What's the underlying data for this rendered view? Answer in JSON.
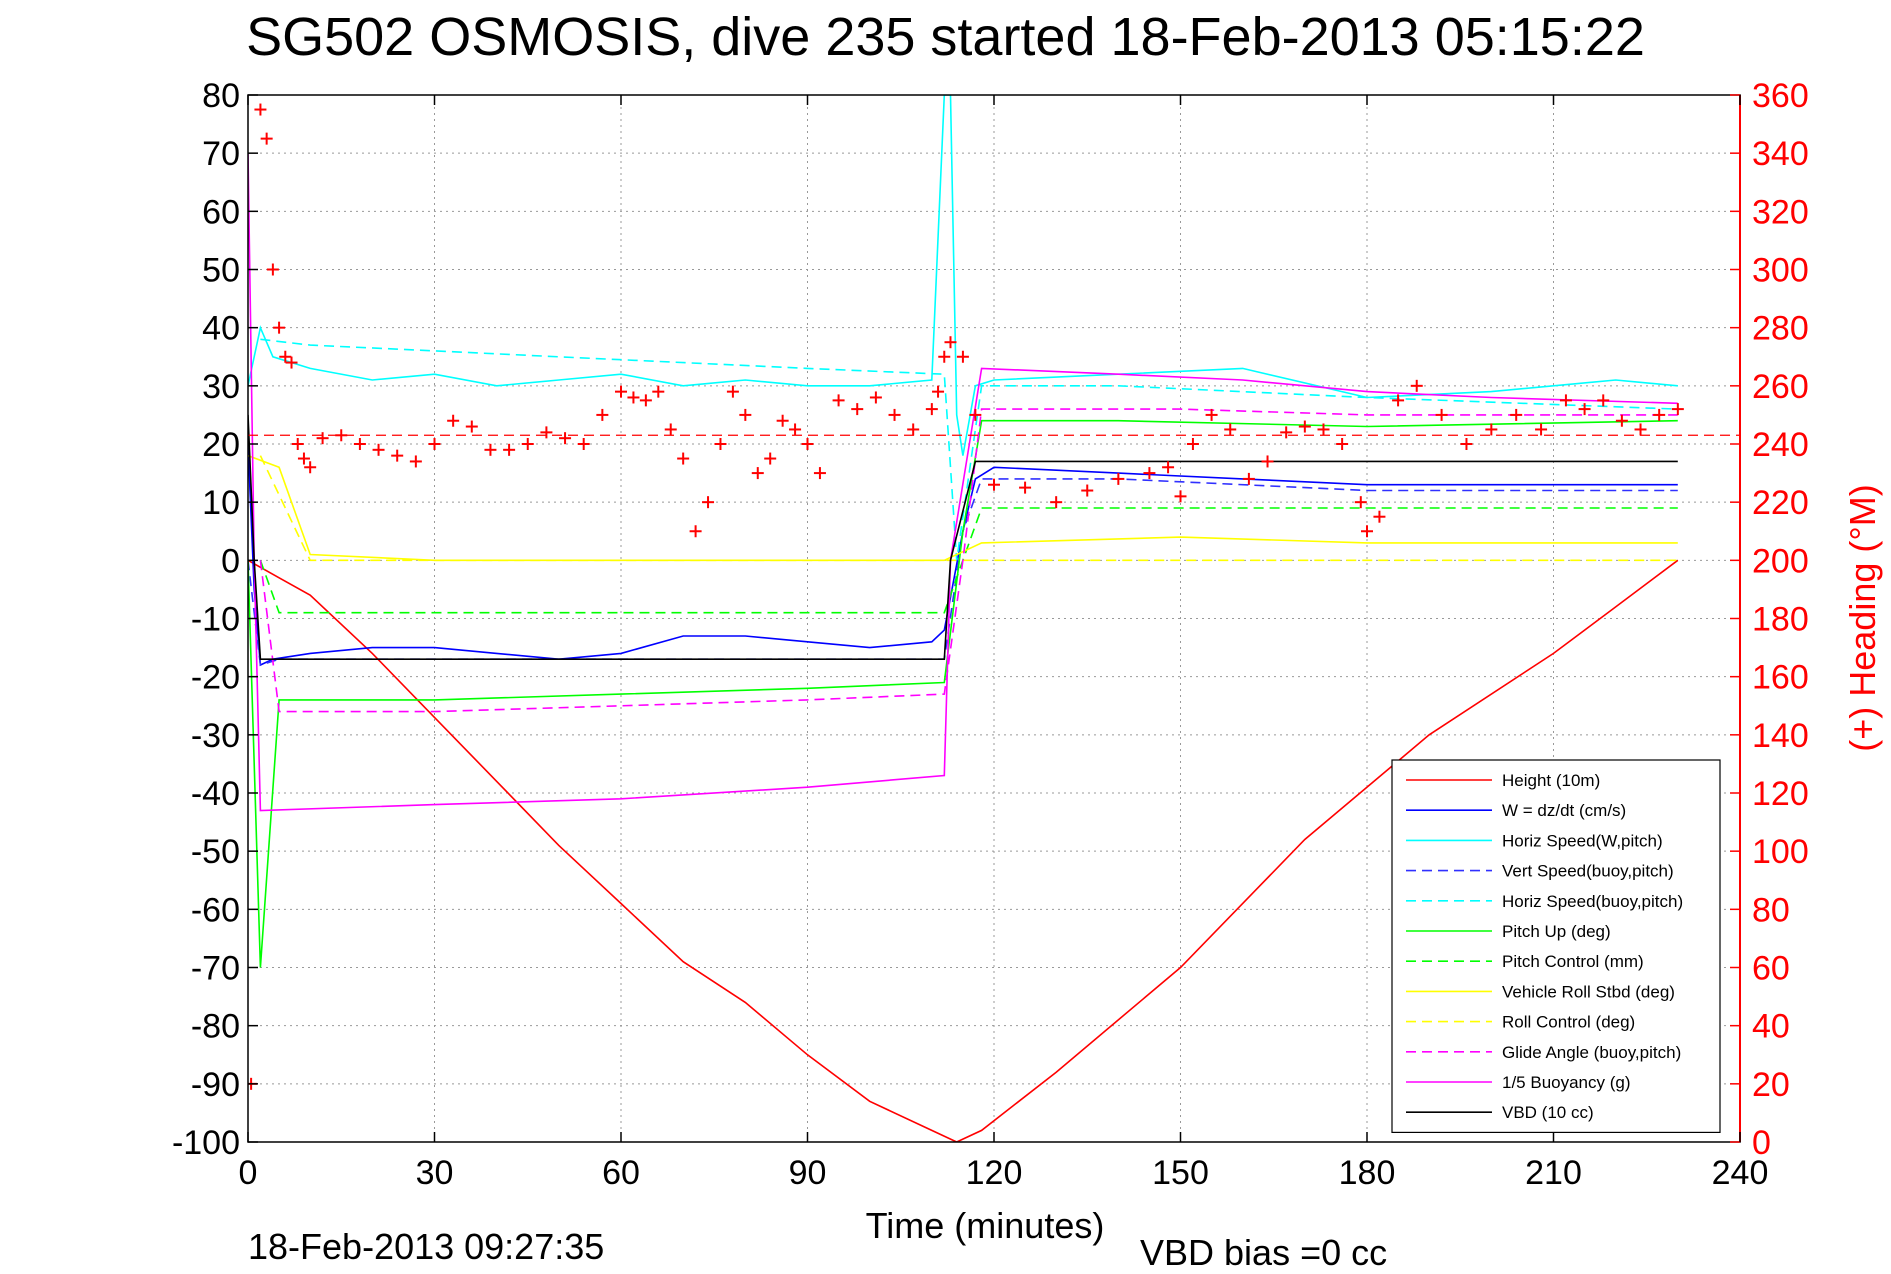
{
  "chart_data": {
    "type": "line",
    "title": "SG502 OSMOSIS, dive 235 started 18-Feb-2013 05:15:22",
    "xlabel": "Time (minutes)",
    "ylabel_right": "(+) Heading (°M)",
    "xlim": [
      0,
      240
    ],
    "ylim_left": [
      -100,
      80
    ],
    "ylim_right": [
      0,
      360
    ],
    "x_ticks": [
      "0",
      "30",
      "60",
      "90",
      "120",
      "150",
      "180",
      "210",
      "240"
    ],
    "y_ticks_left": [
      "80",
      "70",
      "60",
      "50",
      "40",
      "30",
      "20",
      "10",
      "0",
      "-10",
      "-20",
      "-30",
      "-40",
      "-50",
      "-60",
      "-70",
      "-80",
      "-90",
      "-100"
    ],
    "y_ticks_right": [
      "360",
      "340",
      "320",
      "300",
      "280",
      "260",
      "240",
      "220",
      "200",
      "180",
      "160",
      "140",
      "120",
      "100",
      "80",
      "60",
      "40",
      "20",
      "0"
    ],
    "grid": true,
    "legend_position": "lower-right",
    "footer_left": "18-Feb-2013 09:27:35",
    "footer_right": "VBD bias =0 cc",
    "series": [
      {
        "name": "Height (10m)",
        "color": "#ff0000",
        "style": "solid",
        "x": [
          0,
          5,
          10,
          20,
          30,
          40,
          50,
          60,
          70,
          80,
          90,
          100,
          110,
          114,
          118,
          130,
          150,
          170,
          190,
          210,
          220,
          230
        ],
        "y": [
          0,
          -3,
          -6,
          -16,
          -27,
          -38,
          -49,
          -59,
          -69,
          -76,
          -85,
          -93,
          -98,
          -100,
          -98,
          -88,
          -70,
          -48,
          -30,
          -16,
          -8,
          0
        ]
      },
      {
        "name": "W = dz/dt (cm/s)",
        "color": "#0000ff",
        "style": "solid",
        "x": [
          0,
          1,
          2,
          4,
          10,
          20,
          30,
          40,
          50,
          60,
          70,
          80,
          90,
          100,
          110,
          112,
          115,
          117,
          120,
          140,
          160,
          180,
          200,
          220,
          230
        ],
        "y": [
          20,
          -5,
          -18,
          -17,
          -16,
          -15,
          -15,
          -16,
          -17,
          -16,
          -13,
          -13,
          -14,
          -15,
          -14,
          -12,
          5,
          14,
          16,
          15,
          14,
          13,
          13,
          13,
          13
        ]
      },
      {
        "name": "Horiz Speed(W,pitch)",
        "color": "#00ffff",
        "style": "solid",
        "x": [
          0,
          2,
          4,
          10,
          20,
          30,
          40,
          50,
          60,
          70,
          80,
          90,
          100,
          110,
          112,
          113,
          114,
          115,
          117,
          120,
          140,
          160,
          180,
          200,
          220,
          230
        ],
        "y": [
          30,
          40,
          35,
          33,
          31,
          32,
          30,
          31,
          32,
          30,
          31,
          30,
          30,
          31,
          80,
          80,
          25,
          18,
          30,
          31,
          32,
          33,
          28,
          29,
          31,
          30
        ]
      },
      {
        "name": "Vert Speed(buoy,pitch)",
        "color": "#3030ff",
        "style": "dashed",
        "x": [
          0,
          2,
          5,
          30,
          60,
          90,
          112,
          115,
          118,
          140,
          180,
          230
        ],
        "y": [
          0,
          -18,
          -17,
          -17,
          -17,
          -17,
          -17,
          5,
          14,
          14,
          12,
          12
        ]
      },
      {
        "name": "Horiz Speed(buoy,pitch)",
        "color": "#00ffff",
        "style": "dashed",
        "x": [
          2,
          10,
          30,
          50,
          70,
          90,
          112,
          114,
          118,
          140,
          180,
          230
        ],
        "y": [
          38,
          37,
          36,
          35,
          34,
          33,
          32,
          0,
          30,
          30,
          28,
          26
        ]
      },
      {
        "name": "Pitch Up (deg)",
        "color": "#00ff00",
        "style": "solid",
        "x": [
          0,
          2,
          5,
          30,
          60,
          90,
          112,
          115,
          118,
          140,
          180,
          230
        ],
        "y": [
          0,
          -70,
          -24,
          -24,
          -23,
          -22,
          -21,
          5,
          24,
          24,
          23,
          24
        ]
      },
      {
        "name": "Pitch Control (mm)",
        "color": "#00ff00",
        "style": "dashed",
        "x": [
          2,
          5,
          112,
          115,
          118,
          230
        ],
        "y": [
          0,
          -9,
          -9,
          0,
          9,
          9
        ]
      },
      {
        "name": "Vehicle Roll Stbd (deg)",
        "color": "#ffff00",
        "style": "solid",
        "x": [
          0,
          5,
          10,
          30,
          60,
          90,
          112,
          118,
          150,
          180,
          210,
          230
        ],
        "y": [
          18,
          16,
          1,
          0,
          0,
          0,
          0,
          3,
          4,
          3,
          3,
          3
        ]
      },
      {
        "name": "Roll Control (deg)",
        "color": "#ffff00",
        "style": "dashed",
        "x": [
          2,
          10,
          60,
          112,
          118,
          230
        ],
        "y": [
          18,
          0,
          0,
          0,
          0,
          0
        ]
      },
      {
        "name": "Glide Angle (buoy,pitch)",
        "color": "#ff00ff",
        "style": "dashed",
        "x": [
          2,
          5,
          30,
          60,
          90,
          112,
          115,
          118,
          150,
          180,
          230
        ],
        "y": [
          0,
          -26,
          -26,
          -25,
          -24,
          -23,
          0,
          26,
          26,
          25,
          25
        ]
      },
      {
        "name": "1/5 Buoyancy (g)",
        "color": "#ff00ff",
        "style": "solid",
        "x": [
          0,
          1,
          2,
          30,
          60,
          90,
          112,
          113,
          118,
          140,
          160,
          180,
          200,
          230
        ],
        "y": [
          70,
          0,
          -43,
          -42,
          -41,
          -39,
          -37,
          0,
          33,
          32,
          31,
          29,
          28,
          27
        ]
      },
      {
        "name": "VBD (10 cc)",
        "color": "#000000",
        "style": "solid",
        "x": [
          0,
          1,
          2,
          112,
          113,
          117,
          230
        ],
        "y": [
          25,
          0,
          -17,
          -17,
          0,
          17,
          17
        ]
      }
    ],
    "heading_marks": {
      "name": "(+) Heading (°M)",
      "color": "#ff0000",
      "x": [
        0.5,
        2,
        3,
        4,
        5,
        6,
        7,
        8,
        9,
        10,
        12,
        15,
        18,
        21,
        24,
        27,
        30,
        33,
        36,
        39,
        42,
        45,
        48,
        51,
        54,
        57,
        60,
        62,
        64,
        66,
        68,
        70,
        72,
        74,
        76,
        78,
        80,
        82,
        84,
        86,
        88,
        90,
        92,
        95,
        98,
        101,
        104,
        107,
        110,
        111,
        112,
        113,
        115,
        117,
        120,
        125,
        130,
        135,
        140,
        145,
        148,
        150,
        152,
        155,
        158,
        161,
        164,
        167,
        170,
        173,
        176,
        179,
        180,
        182,
        185,
        188,
        192,
        196,
        200,
        204,
        208,
        212,
        215,
        218,
        221,
        224,
        227,
        230
      ],
      "y": [
        20,
        355,
        345,
        300,
        280,
        270,
        268,
        240,
        235,
        232,
        242,
        243,
        240,
        238,
        236,
        234,
        240,
        248,
        246,
        238,
        238,
        240,
        244,
        242,
        240,
        250,
        258,
        256,
        255,
        258,
        245,
        235,
        210,
        220,
        240,
        258,
        250,
        230,
        235,
        248,
        245,
        240,
        230,
        255,
        252,
        256,
        250,
        245,
        252,
        258,
        270,
        275,
        270,
        250,
        226,
        225,
        220,
        224,
        228,
        230,
        232,
        222,
        240,
        250,
        245,
        228,
        234,
        244,
        246,
        245,
        240,
        220,
        210,
        215,
        255,
        260,
        250,
        240,
        245,
        250,
        245,
        255,
        252,
        255,
        248,
        245,
        250,
        252
      ]
    },
    "heading_reference": {
      "color": "#ff0000",
      "style": "dashed",
      "value_right": 243
    }
  }
}
